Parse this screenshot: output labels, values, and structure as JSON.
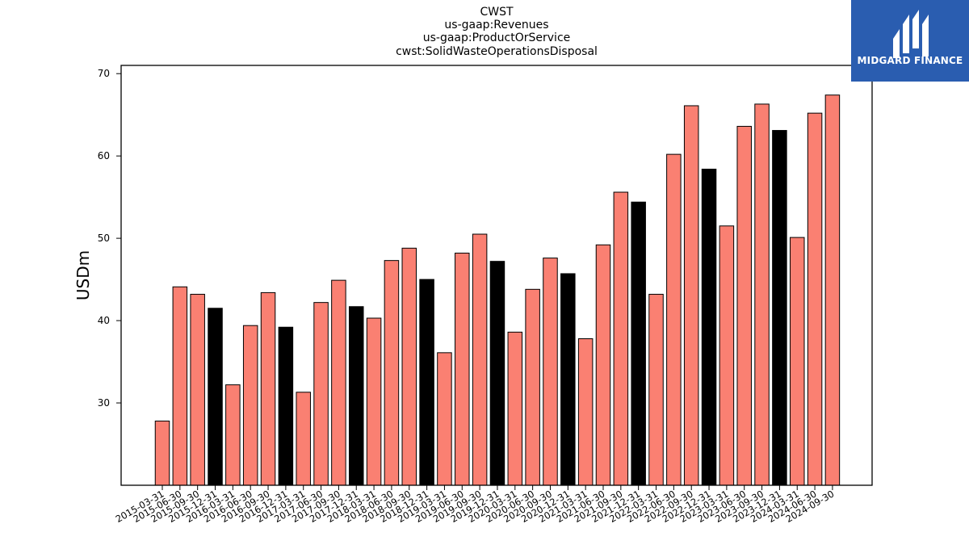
{
  "title_lines": [
    "CWST",
    "us-gaap:Revenues",
    "us-gaap:ProductOrService",
    "cwst:SolidWasteOperationsDisposal"
  ],
  "logo": {
    "text": "MIDGARD FINANCE",
    "background": "#2a5db0"
  },
  "colors": {
    "quarter": "#fa8072",
    "annual": "#000000",
    "edge": "#000000"
  },
  "chart_data": {
    "type": "bar",
    "title": "CWST\nus-gaap:Revenues\nus-gaap:ProductOrService\ncwst:SolidWasteOperationsDisposal",
    "xlabel": "",
    "ylabel": "USDm",
    "ylim": [
      20,
      71
    ],
    "yticks": [
      30,
      40,
      50,
      60,
      70
    ],
    "grid": false,
    "categories": [
      "2015-03-31",
      "2015-06-30",
      "2015-09-30",
      "2015-12-31",
      "2016-03-31",
      "2016-06-30",
      "2016-09-30",
      "2016-12-31",
      "2017-03-31",
      "2017-06-30",
      "2017-09-30",
      "2017-12-31",
      "2018-03-31",
      "2018-06-30",
      "2018-09-30",
      "2018-12-31",
      "2019-03-31",
      "2019-06-30",
      "2019-09-30",
      "2019-12-31",
      "2020-03-31",
      "2020-06-30",
      "2020-09-30",
      "2020-12-31",
      "2021-03-31",
      "2021-06-30",
      "2021-09-30",
      "2021-12-31",
      "2022-03-31",
      "2022-06-30",
      "2022-09-30",
      "2022-12-31",
      "2023-03-31",
      "2023-06-30",
      "2023-09-30",
      "2023-12-31",
      "2024-03-31",
      "2024-06-30",
      "2024-09-30"
    ],
    "values": [
      27.8,
      44.1,
      43.2,
      41.5,
      32.2,
      39.4,
      43.4,
      39.2,
      31.3,
      42.2,
      44.9,
      41.7,
      40.3,
      47.3,
      48.8,
      45.0,
      36.1,
      48.2,
      50.5,
      47.2,
      38.6,
      43.8,
      47.6,
      45.7,
      37.8,
      49.2,
      55.6,
      54.4,
      43.2,
      60.2,
      66.1,
      58.4,
      51.5,
      63.6,
      66.3,
      63.1,
      50.1,
      65.2,
      67.4
    ],
    "bar_colors": [
      "#fa8072",
      "#fa8072",
      "#fa8072",
      "#000000",
      "#fa8072",
      "#fa8072",
      "#fa8072",
      "#000000",
      "#fa8072",
      "#fa8072",
      "#fa8072",
      "#000000",
      "#fa8072",
      "#fa8072",
      "#fa8072",
      "#000000",
      "#fa8072",
      "#fa8072",
      "#fa8072",
      "#000000",
      "#fa8072",
      "#fa8072",
      "#fa8072",
      "#000000",
      "#fa8072",
      "#fa8072",
      "#fa8072",
      "#000000",
      "#fa8072",
      "#fa8072",
      "#fa8072",
      "#000000",
      "#fa8072",
      "#fa8072",
      "#fa8072",
      "#000000",
      "#fa8072",
      "#fa8072",
      "#fa8072"
    ]
  }
}
